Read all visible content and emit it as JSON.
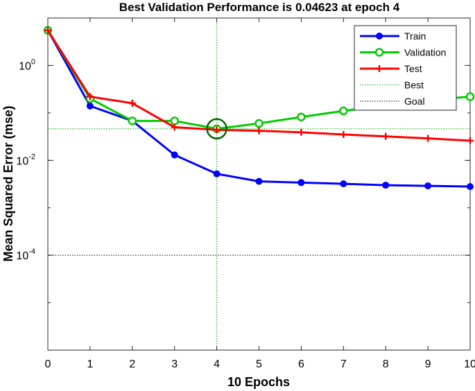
{
  "chart_data": {
    "type": "line",
    "title": "Best Validation Performance is 0.04623 at epoch 4",
    "xlabel": "10 Epochs",
    "ylabel": "Mean Squared Error  (mse)",
    "yscale": "log",
    "xlim": [
      0,
      10
    ],
    "ylim": [
      1e-06,
      10
    ],
    "x": [
      0,
      1,
      2,
      3,
      4,
      5,
      6,
      7,
      8,
      9,
      10
    ],
    "x_tick_labels": [
      "0",
      "1",
      "2",
      "3",
      "4",
      "5",
      "6",
      "7",
      "8",
      "9",
      "10"
    ],
    "y_ticks": [
      {
        "value": 1,
        "base": "10",
        "exponent": "0"
      },
      {
        "value": 0.01,
        "base": "10",
        "exponent": "-2"
      },
      {
        "value": 0.0001,
        "base": "10",
        "exponent": "-4"
      }
    ],
    "series": [
      {
        "name": "Train",
        "color": "#0000ff",
        "marker": "filled-circle",
        "values": [
          5.5,
          0.14,
          0.068,
          0.013,
          0.0052,
          0.0036,
          0.0034,
          0.0032,
          0.003,
          0.0029,
          0.0028
        ]
      },
      {
        "name": "Validation",
        "color": "#00cc00",
        "marker": "open-circle",
        "values": [
          5.5,
          0.2,
          0.068,
          0.068,
          0.04623,
          0.06,
          0.082,
          0.11,
          0.145,
          0.185,
          0.22
        ]
      },
      {
        "name": "Test",
        "color": "#ff0000",
        "marker": "plus",
        "values": [
          5.5,
          0.22,
          0.16,
          0.05,
          0.044,
          0.042,
          0.039,
          0.035,
          0.032,
          0.029,
          0.026
        ]
      }
    ],
    "best": {
      "name": "Best",
      "epoch": 4,
      "value": 0.04623,
      "color": "#00aa00",
      "style": "dotted",
      "highlight_color": "#006600"
    },
    "goal": {
      "name": "Goal",
      "value": 0.0001,
      "color": "#000000",
      "style": "dotted"
    },
    "legend_position": "top-right"
  }
}
